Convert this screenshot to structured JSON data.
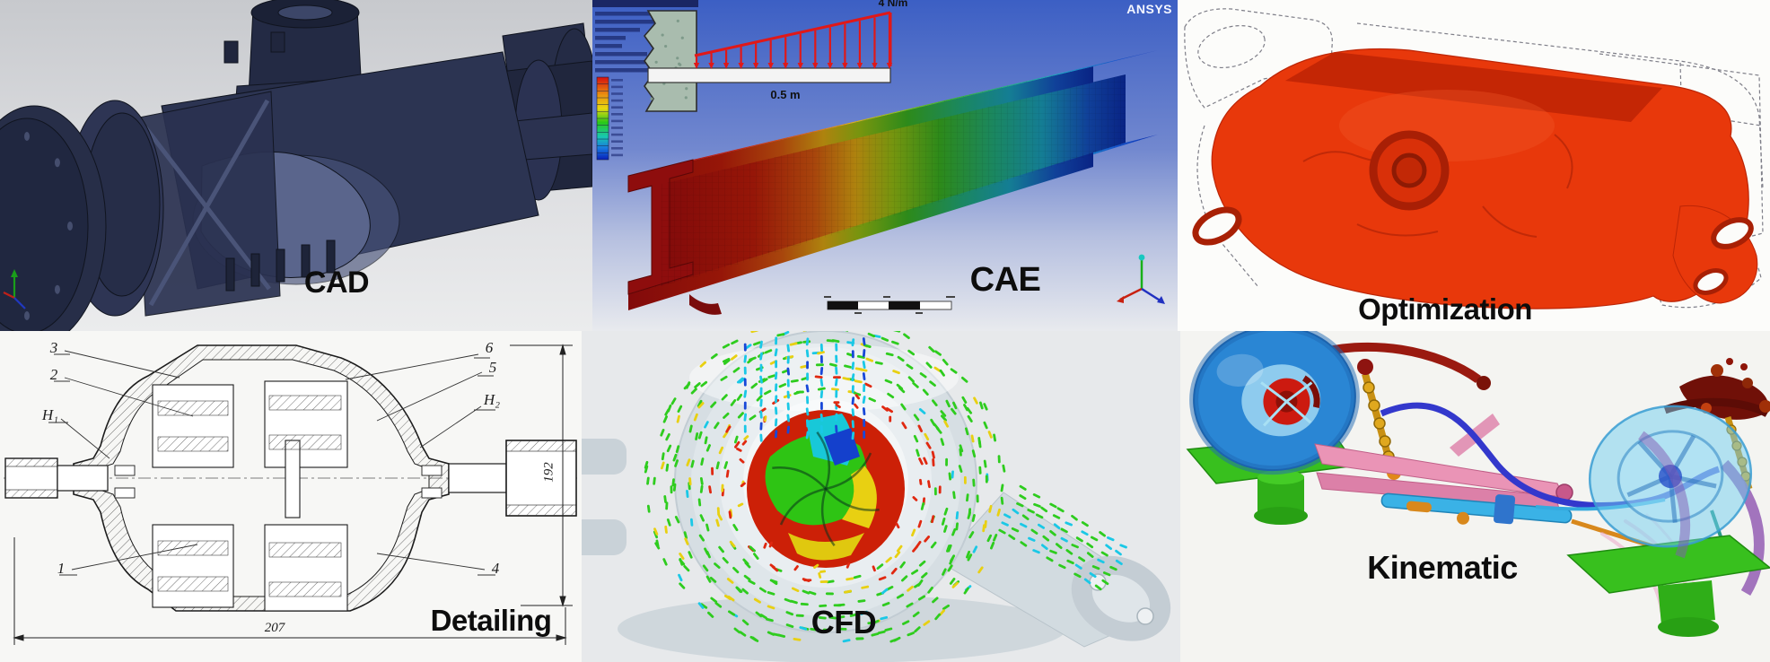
{
  "collage": {
    "panels": [
      {
        "id": "cad",
        "label": "CAD"
      },
      {
        "id": "cae",
        "label": "CAE",
        "brand": "ANSYS",
        "load_label": "4 N/m",
        "span_label": "0.5 m"
      },
      {
        "id": "optimization",
        "label": "Optimization"
      },
      {
        "id": "detailing",
        "label": "Detailing",
        "callouts": {
          "c3": "3",
          "c2": "2",
          "h1": "H₁",
          "c1": "1",
          "c6": "6",
          "c5": "5",
          "h2": "H₂",
          "c4": "4"
        },
        "dim_width": "207",
        "dim_height": "192"
      },
      {
        "id": "cfd",
        "label": "CFD"
      },
      {
        "id": "kinematic",
        "label": "Kinematic"
      }
    ],
    "colors": {
      "label_text": "#0d0d0d",
      "cad_model": "#2b3250",
      "cae_sky": "#3f63c5",
      "stress_max_red": "#b80f0f",
      "stress_min_blue": "#0c2eb0",
      "load_arrow_red": "#e01818",
      "optimized_red": "#e8380c",
      "vector_green": "#2ecc1e",
      "vector_yellow": "#e8d012",
      "vector_red": "#e02810",
      "vector_cyan": "#1ac8e6",
      "vector_blue": "#1848d8",
      "platform_green": "#38c01e",
      "wheel_blue": "#2a86d4"
    }
  }
}
